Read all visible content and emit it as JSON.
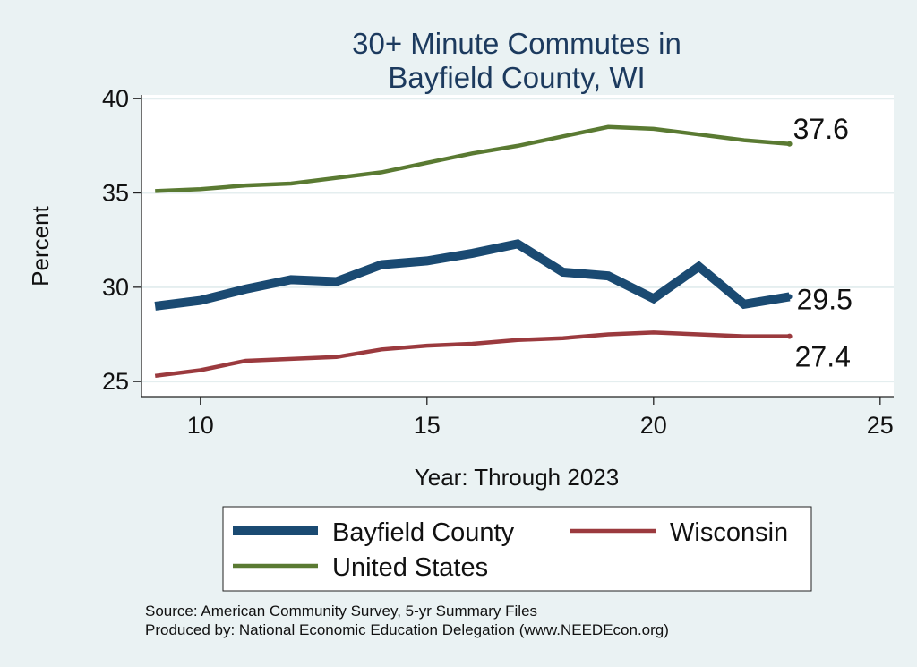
{
  "chart_data": {
    "type": "line",
    "title": [
      "30+ Minute Commutes in",
      "Bayfield County, WI"
    ],
    "xlabel": "Year: Through 2023",
    "ylabel": "Percent",
    "xlim": [
      8.7,
      25.3
    ],
    "ylim": [
      24.2,
      40.2
    ],
    "xticks": [
      10,
      15,
      20,
      25
    ],
    "yticks": [
      25,
      30,
      35,
      40
    ],
    "grid": true,
    "legend": "bottom",
    "x": [
      9,
      10,
      11,
      12,
      13,
      14,
      15,
      16,
      17,
      18,
      19,
      20,
      21,
      22,
      23
    ],
    "series": [
      {
        "name": "Bayfield County",
        "color": "#1a4a72",
        "values": [
          29.0,
          29.3,
          29.9,
          30.4,
          30.3,
          31.2,
          31.4,
          31.8,
          32.3,
          30.8,
          30.6,
          29.4,
          31.1,
          29.1,
          29.5
        ],
        "end_label": "29.5"
      },
      {
        "name": "Wisconsin",
        "color": "#9b3a3e",
        "values": [
          25.3,
          25.6,
          26.1,
          26.2,
          26.3,
          26.7,
          26.9,
          27.0,
          27.2,
          27.3,
          27.5,
          27.6,
          27.5,
          27.4,
          27.4
        ],
        "end_label": "27.4"
      },
      {
        "name": "United States",
        "color": "#5a7a32",
        "values": [
          35.1,
          35.2,
          35.4,
          35.5,
          35.8,
          36.1,
          36.6,
          37.1,
          37.5,
          38.0,
          38.5,
          38.4,
          38.1,
          37.8,
          37.6
        ],
        "end_label": "37.6"
      }
    ]
  },
  "notes": [
    "Source: American Community Survey, 5-yr Summary Files",
    "Produced by: National Economic Education Delegation (www.NEEDEcon.org)"
  ]
}
